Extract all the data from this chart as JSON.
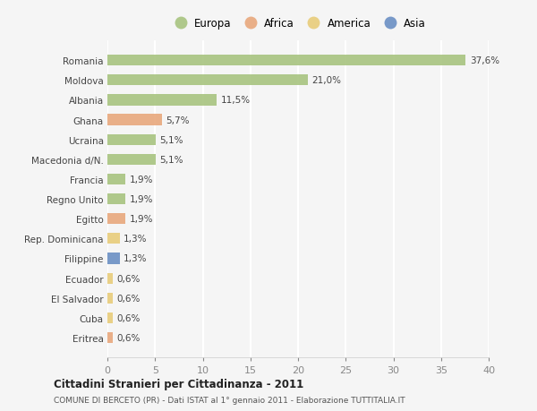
{
  "categories": [
    "Romania",
    "Moldova",
    "Albania",
    "Ghana",
    "Ucraina",
    "Macedonia d/N.",
    "Francia",
    "Regno Unito",
    "Egitto",
    "Rep. Dominicana",
    "Filippine",
    "Ecuador",
    "El Salvador",
    "Cuba",
    "Eritrea"
  ],
  "values": [
    37.6,
    21.0,
    11.5,
    5.7,
    5.1,
    5.1,
    1.9,
    1.9,
    1.9,
    1.3,
    1.3,
    0.6,
    0.6,
    0.6,
    0.6
  ],
  "labels": [
    "37,6%",
    "21,0%",
    "11,5%",
    "5,7%",
    "5,1%",
    "5,1%",
    "1,9%",
    "1,9%",
    "1,9%",
    "1,3%",
    "1,3%",
    "0,6%",
    "0,6%",
    "0,6%",
    "0,6%"
  ],
  "continent": [
    "Europa",
    "Europa",
    "Europa",
    "Africa",
    "Europa",
    "Europa",
    "Europa",
    "Europa",
    "Africa",
    "America",
    "Asia",
    "America",
    "America",
    "America",
    "Africa"
  ],
  "colors": {
    "Europa": "#a8c480",
    "Africa": "#e8a87c",
    "America": "#e8cc7a",
    "Asia": "#6b8fc4"
  },
  "legend_labels": [
    "Europa",
    "Africa",
    "America",
    "Asia"
  ],
  "legend_colors": [
    "#a8c480",
    "#e8a87c",
    "#e8cc7a",
    "#6b8fc4"
  ],
  "title": "Cittadini Stranieri per Cittadinanza - 2011",
  "subtitle": "COMUNE DI BERCETO (PR) - Dati ISTAT al 1° gennaio 2011 - Elaborazione TUTTITALIA.IT",
  "xlim": [
    0,
    40
  ],
  "xticks": [
    0,
    5,
    10,
    15,
    20,
    25,
    30,
    35,
    40
  ],
  "background_color": "#f5f5f5",
  "grid_color": "#ffffff",
  "bar_height": 0.55
}
